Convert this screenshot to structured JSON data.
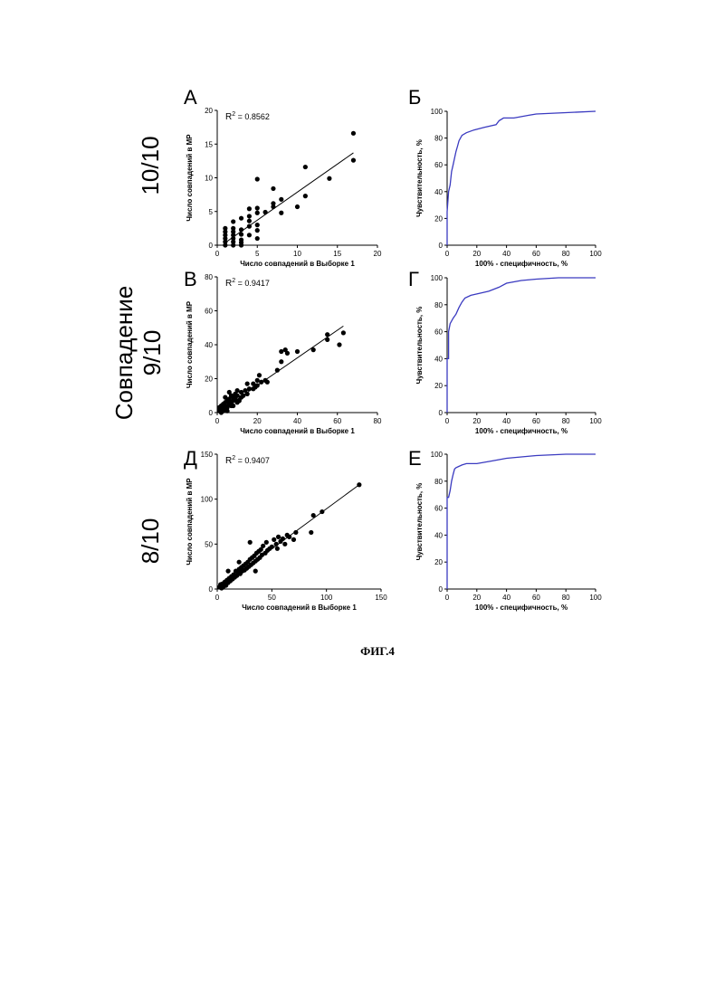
{
  "figure": {
    "caption": "ФИГ.4",
    "row_labels": {
      "row1": "10/10",
      "row2_line1": "Совпадение",
      "row2_line2": "9/10",
      "row3": "8/10"
    }
  },
  "colors": {
    "scatter": "#000000",
    "roc": "#3a3ac0"
  },
  "chart_data": [
    {
      "panel": "А",
      "type": "scatter",
      "xlabel": "Число совпадений в Выборке 1",
      "ylabel": "Число совпадений в МР",
      "r2_prefix": "R",
      "r2_exp": "2",
      "r2_value": " = 0.8562",
      "xlim": [
        0,
        20
      ],
      "ylim": [
        0,
        20
      ],
      "xticks": [
        "0",
        "5",
        "10",
        "15",
        "20"
      ],
      "yticks": [
        "0",
        "5",
        "10",
        "15",
        "20"
      ],
      "fit": [
        [
          0.9,
          0.3
        ],
        [
          17,
          13.7
        ]
      ],
      "points": [
        [
          1,
          0
        ],
        [
          1,
          0.5
        ],
        [
          1,
          1
        ],
        [
          1,
          1.5
        ],
        [
          1,
          2
        ],
        [
          1,
          2.5
        ],
        [
          2,
          0
        ],
        [
          2,
          0.5
        ],
        [
          2,
          1
        ],
        [
          2,
          1.5
        ],
        [
          2,
          2
        ],
        [
          2,
          2.5
        ],
        [
          2,
          3.5
        ],
        [
          3,
          0
        ],
        [
          3,
          0.8
        ],
        [
          3,
          1.6
        ],
        [
          3,
          2.3
        ],
        [
          3,
          4
        ],
        [
          4,
          2.8
        ],
        [
          4,
          3.6
        ],
        [
          4,
          4.3
        ],
        [
          4,
          5.4
        ],
        [
          4,
          1.5
        ],
        [
          5,
          2.2
        ],
        [
          5,
          3
        ],
        [
          5,
          4.8
        ],
        [
          5,
          5.5
        ],
        [
          5,
          9.8
        ],
        [
          5,
          1
        ],
        [
          7,
          5.7
        ],
        [
          7,
          6.2
        ],
        [
          7,
          8.4
        ],
        [
          8,
          4.8
        ],
        [
          8,
          6.8
        ],
        [
          10,
          5.7
        ],
        [
          11,
          7.3
        ],
        [
          11,
          11.6
        ],
        [
          14,
          9.9
        ],
        [
          17,
          16.6
        ],
        [
          17,
          12.6
        ],
        [
          6,
          4.9
        ],
        [
          3,
          0.4
        ]
      ]
    },
    {
      "panel": "Б",
      "type": "line",
      "xlabel": "100% - специфичность, %",
      "ylabel": "Чувствительность, %",
      "xlim": [
        0,
        100
      ],
      "ylim": [
        0,
        100
      ],
      "xticks": [
        "0",
        "20",
        "40",
        "60",
        "80",
        "100"
      ],
      "yticks": [
        "0",
        "20",
        "40",
        "60",
        "80",
        "100"
      ],
      "points": [
        [
          0,
          0
        ],
        [
          0,
          25
        ],
        [
          1,
          40
        ],
        [
          2,
          45
        ],
        [
          3,
          55
        ],
        [
          4,
          60
        ],
        [
          5,
          65
        ],
        [
          6,
          70
        ],
        [
          7,
          74
        ],
        [
          8,
          78
        ],
        [
          10,
          82
        ],
        [
          13,
          84
        ],
        [
          18,
          86
        ],
        [
          25,
          88
        ],
        [
          33,
          90
        ],
        [
          35,
          93
        ],
        [
          38,
          95
        ],
        [
          45,
          95
        ],
        [
          55,
          97
        ],
        [
          60,
          98
        ],
        [
          80,
          99
        ],
        [
          100,
          100
        ]
      ]
    },
    {
      "panel": "В",
      "type": "scatter",
      "xlabel": "Число совпадений в Выборке 1",
      "ylabel": "Число совпадений в МР",
      "r2_prefix": "R",
      "r2_exp": "2",
      "r2_value": " = 0.9417",
      "xlim": [
        0,
        80
      ],
      "ylim": [
        0,
        80
      ],
      "xticks": [
        "0",
        "20",
        "40",
        "60",
        "80"
      ],
      "yticks": [
        "0",
        "20",
        "40",
        "60",
        "80"
      ],
      "fit": [
        [
          1,
          0.5
        ],
        [
          63,
          51
        ]
      ],
      "points": [
        [
          1,
          1
        ],
        [
          1,
          2
        ],
        [
          1,
          3
        ],
        [
          2,
          0
        ],
        [
          2,
          2
        ],
        [
          2,
          4
        ],
        [
          3,
          1
        ],
        [
          3,
          3
        ],
        [
          3,
          5
        ],
        [
          4,
          2
        ],
        [
          4,
          4
        ],
        [
          4,
          6
        ],
        [
          4,
          9
        ],
        [
          5,
          1
        ],
        [
          5,
          3
        ],
        [
          5,
          7
        ],
        [
          6,
          5
        ],
        [
          6,
          8
        ],
        [
          7,
          4
        ],
        [
          7,
          6
        ],
        [
          7,
          10
        ],
        [
          8,
          7
        ],
        [
          8,
          9
        ],
        [
          9,
          8
        ],
        [
          9,
          11
        ],
        [
          10,
          6
        ],
        [
          10,
          10
        ],
        [
          10,
          13
        ],
        [
          12,
          9
        ],
        [
          12,
          12
        ],
        [
          13,
          10
        ],
        [
          14,
          13
        ],
        [
          15,
          11
        ],
        [
          15,
          17
        ],
        [
          16,
          14
        ],
        [
          18,
          14
        ],
        [
          18,
          17
        ],
        [
          19,
          15
        ],
        [
          20,
          16
        ],
        [
          20,
          19
        ],
        [
          21,
          22
        ],
        [
          22,
          18
        ],
        [
          24,
          19
        ],
        [
          25,
          18
        ],
        [
          30,
          25
        ],
        [
          32,
          30
        ],
        [
          32,
          36
        ],
        [
          34,
          37
        ],
        [
          35,
          35
        ],
        [
          40,
          36
        ],
        [
          48,
          37
        ],
        [
          55,
          43
        ],
        [
          55,
          46
        ],
        [
          61,
          40
        ],
        [
          63,
          47
        ],
        [
          6,
          12
        ],
        [
          8,
          4
        ],
        [
          11,
          7
        ]
      ]
    },
    {
      "panel": "Г",
      "type": "line",
      "xlabel": "100% - специфичность, %",
      "ylabel": "Чувствительность, %",
      "xlim": [
        0,
        100
      ],
      "ylim": [
        0,
        100
      ],
      "xticks": [
        "0",
        "20",
        "40",
        "60",
        "80",
        "100"
      ],
      "yticks": [
        "0",
        "20",
        "40",
        "60",
        "80",
        "100"
      ],
      "points": [
        [
          0,
          0
        ],
        [
          0,
          40
        ],
        [
          1,
          40
        ],
        [
          1,
          60
        ],
        [
          2,
          66
        ],
        [
          4,
          70
        ],
        [
          6,
          73
        ],
        [
          8,
          78
        ],
        [
          10,
          82
        ],
        [
          12,
          85
        ],
        [
          16,
          87
        ],
        [
          20,
          88
        ],
        [
          28,
          90
        ],
        [
          35,
          93
        ],
        [
          40,
          96
        ],
        [
          50,
          98
        ],
        [
          60,
          99
        ],
        [
          75,
          100
        ],
        [
          100,
          100
        ]
      ]
    },
    {
      "panel": "Д",
      "type": "scatter",
      "xlabel": "Число совпадений в Выборке 1",
      "ylabel": "Число совпадений в МР",
      "r2_prefix": "R",
      "r2_exp": "2",
      "r2_value": " = 0.9407",
      "xlim": [
        0,
        150
      ],
      "ylim": [
        0,
        150
      ],
      "xticks": [
        "0",
        "50",
        "100",
        "150"
      ],
      "yticks": [
        "0",
        "50",
        "100",
        "150"
      ],
      "fit": [
        [
          1,
          1
        ],
        [
          130,
          116
        ]
      ],
      "points": [
        [
          2,
          2
        ],
        [
          3,
          5
        ],
        [
          4,
          1
        ],
        [
          5,
          6
        ],
        [
          6,
          3
        ],
        [
          7,
          8
        ],
        [
          8,
          4
        ],
        [
          9,
          10
        ],
        [
          10,
          7
        ],
        [
          11,
          12
        ],
        [
          12,
          9
        ],
        [
          13,
          14
        ],
        [
          14,
          11
        ],
        [
          15,
          16
        ],
        [
          16,
          13
        ],
        [
          17,
          20
        ],
        [
          18,
          15
        ],
        [
          19,
          18
        ],
        [
          20,
          22
        ],
        [
          21,
          17
        ],
        [
          22,
          24
        ],
        [
          23,
          20
        ],
        [
          24,
          26
        ],
        [
          25,
          21
        ],
        [
          26,
          28
        ],
        [
          27,
          23
        ],
        [
          28,
          30
        ],
        [
          29,
          25
        ],
        [
          30,
          33
        ],
        [
          31,
          27
        ],
        [
          32,
          35
        ],
        [
          33,
          29
        ],
        [
          34,
          37
        ],
        [
          35,
          31
        ],
        [
          36,
          40
        ],
        [
          37,
          33
        ],
        [
          38,
          42
        ],
        [
          39,
          35
        ],
        [
          40,
          44
        ],
        [
          41,
          38
        ],
        [
          42,
          48
        ],
        [
          44,
          40
        ],
        [
          45,
          52
        ],
        [
          46,
          43
        ],
        [
          48,
          45
        ],
        [
          50,
          47
        ],
        [
          52,
          55
        ],
        [
          54,
          50
        ],
        [
          56,
          58
        ],
        [
          58,
          53
        ],
        [
          60,
          56
        ],
        [
          62,
          50
        ],
        [
          64,
          60
        ],
        [
          66,
          58
        ],
        [
          70,
          55
        ],
        [
          72,
          63
        ],
        [
          86,
          63
        ],
        [
          88,
          82
        ],
        [
          96,
          86
        ],
        [
          130,
          116
        ],
        [
          30,
          52
        ],
        [
          20,
          30
        ],
        [
          35,
          20
        ],
        [
          55,
          45
        ],
        [
          10,
          20
        ]
      ]
    },
    {
      "panel": "Е",
      "type": "line",
      "xlabel": "100% - специфичность, %",
      "ylabel": "Чувствительность, %",
      "xlim": [
        0,
        100
      ],
      "ylim": [
        0,
        100
      ],
      "xticks": [
        "0",
        "20",
        "40",
        "60",
        "80",
        "100"
      ],
      "yticks": [
        "0",
        "20",
        "40",
        "60",
        "80",
        "100"
      ],
      "points": [
        [
          0,
          0
        ],
        [
          0,
          68
        ],
        [
          1,
          68
        ],
        [
          2,
          73
        ],
        [
          3,
          80
        ],
        [
          4,
          85
        ],
        [
          5,
          89
        ],
        [
          6,
          90
        ],
        [
          8,
          91
        ],
        [
          10,
          92
        ],
        [
          13,
          93
        ],
        [
          20,
          93
        ],
        [
          30,
          95
        ],
        [
          40,
          97
        ],
        [
          50,
          98
        ],
        [
          60,
          99
        ],
        [
          80,
          100
        ],
        [
          100,
          100
        ]
      ]
    }
  ]
}
